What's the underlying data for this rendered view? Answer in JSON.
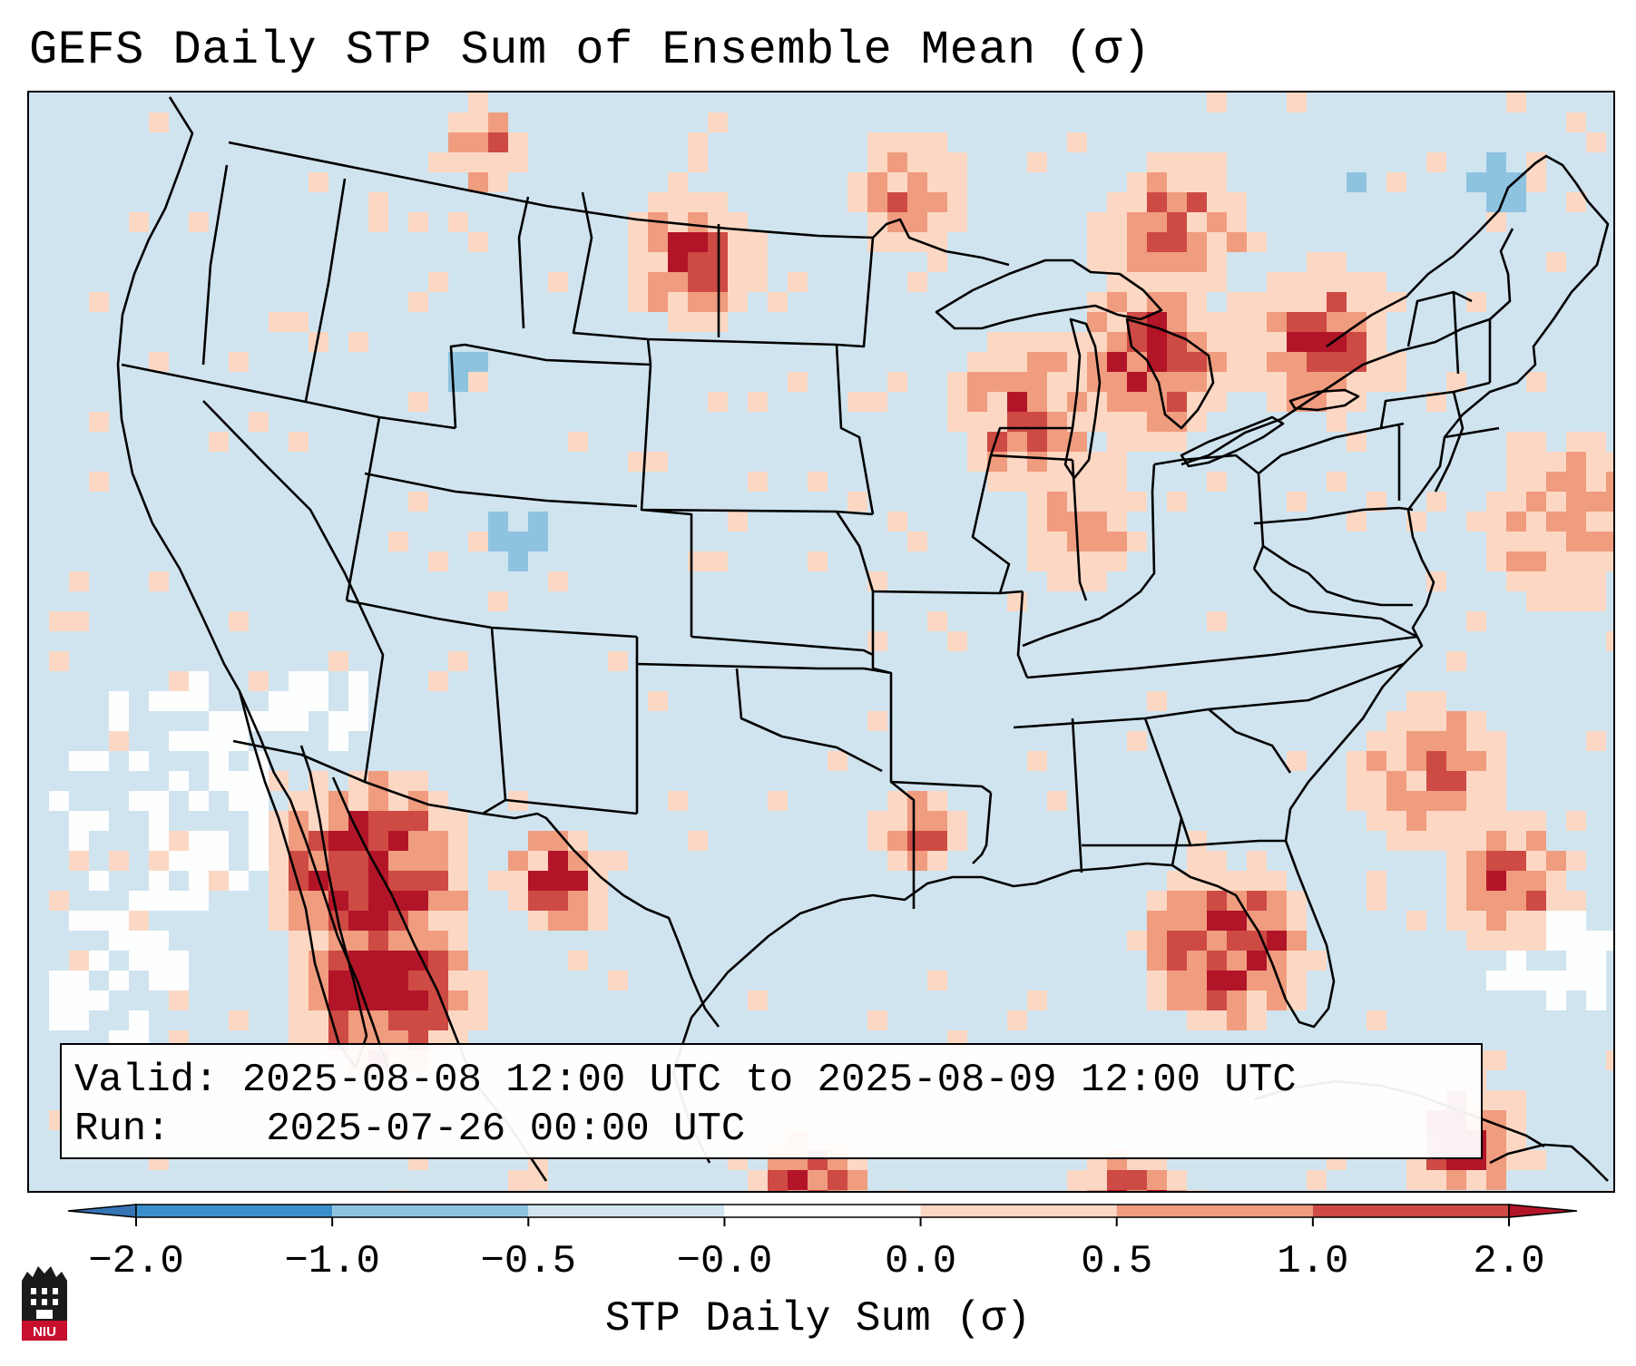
{
  "title": "GEFS Daily STP Sum of Ensemble Mean (σ)",
  "info": {
    "valid_label": "Valid:",
    "valid_text": "2025-08-08 12:00 UTC to 2025-08-09 12:00 UTC",
    "run_label": "Run:",
    "run_text": "2025-07-26 00:00 UTC"
  },
  "colorbar": {
    "title": "STP Daily Sum (σ)",
    "ticks": [
      "−2.0",
      "−1.0",
      "−0.5",
      "−0.0",
      "0.0",
      "0.5",
      "1.0",
      "2.0"
    ],
    "colors": [
      "#3a8fcb",
      "#8ec3e0",
      "#d2e4ef",
      "#fdfefe",
      "#fcd8c4",
      "#f09c7f",
      "#ce4a44"
    ],
    "extend_low_color": "#3574b5",
    "extend_high_color": "#b31528"
  },
  "map_colors": {
    "background": "#d0e4ef",
    "neutral": "#fdfefe",
    "light_red": "#fcd8c4",
    "mid_red": "#f09c7f",
    "strong_red": "#ce4a44",
    "dark_red": "#b31528",
    "light_blue": "#8ec3e0"
  },
  "logo_text": "NIU"
}
